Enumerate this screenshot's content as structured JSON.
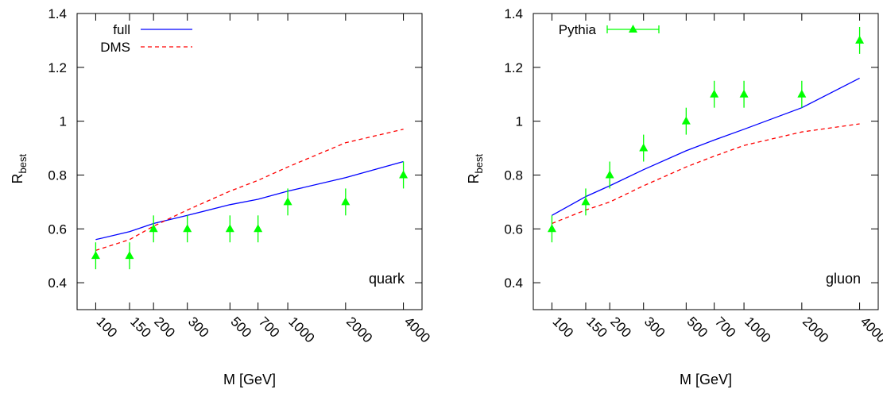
{
  "chart_data": [
    {
      "type": "line",
      "xlabel": "M [GeV]",
      "ylabel_main": "R",
      "ylabel_sub": "best",
      "x_scale": "log",
      "x": [
        100,
        150,
        200,
        300,
        500,
        700,
        1000,
        2000,
        4000
      ],
      "x_tick_labels": [
        "100",
        "150",
        "200",
        "300",
        "500",
        "700",
        "1000",
        "2000",
        "4000"
      ],
      "xlim": [
        80,
        5000
      ],
      "ylim": [
        0.3,
        1.4
      ],
      "y_ticks": [
        0.4,
        0.6,
        0.8,
        1.0,
        1.2,
        1.4
      ],
      "y_tick_labels": [
        "0.4",
        "0.6",
        "0.8",
        "1",
        "1.2",
        "1.4"
      ],
      "annotation": "quark",
      "legend_position": "top-left",
      "series": [
        {
          "name": "full",
          "style": "solid",
          "color": "#0000ff",
          "values": [
            0.56,
            0.59,
            0.62,
            0.65,
            0.69,
            0.71,
            0.74,
            0.79,
            0.85
          ]
        },
        {
          "name": "DMS",
          "style": "dashed",
          "color": "#ff0000",
          "values": [
            0.52,
            0.56,
            0.61,
            0.67,
            0.74,
            0.78,
            0.83,
            0.92,
            0.97
          ]
        },
        {
          "style": "points",
          "color": "#00ff00",
          "error": 0.05,
          "values": [
            0.5,
            0.5,
            0.6,
            0.6,
            0.6,
            0.6,
            0.7,
            0.7,
            0.8
          ]
        }
      ]
    },
    {
      "type": "line",
      "xlabel": "M [GeV]",
      "ylabel_main": "R",
      "ylabel_sub": "best",
      "x_scale": "log",
      "x": [
        100,
        150,
        200,
        300,
        500,
        700,
        1000,
        2000,
        4000
      ],
      "x_tick_labels": [
        "100",
        "150",
        "200",
        "300",
        "500",
        "700",
        "1000",
        "2000",
        "4000"
      ],
      "xlim": [
        80,
        5000
      ],
      "ylim": [
        0.3,
        1.4
      ],
      "y_ticks": [
        0.4,
        0.6,
        0.8,
        1.0,
        1.2,
        1.4
      ],
      "y_tick_labels": [
        "0.4",
        "0.6",
        "0.8",
        "1",
        "1.2",
        "1.4"
      ],
      "annotation": "gluon",
      "legend_position": "top-left",
      "series": [
        {
          "style": "solid",
          "color": "#0000ff",
          "values": [
            0.65,
            0.72,
            0.76,
            0.82,
            0.89,
            0.93,
            0.97,
            1.05,
            1.16
          ]
        },
        {
          "style": "dashed",
          "color": "#ff0000",
          "values": [
            0.62,
            0.67,
            0.7,
            0.76,
            0.83,
            0.87,
            0.91,
            0.96,
            0.99
          ]
        },
        {
          "name": "Pythia",
          "style": "points",
          "color": "#00ff00",
          "error": 0.05,
          "values": [
            0.6,
            0.7,
            0.8,
            0.9,
            1.0,
            1.1,
            1.1,
            1.1,
            1.3
          ]
        }
      ]
    }
  ]
}
